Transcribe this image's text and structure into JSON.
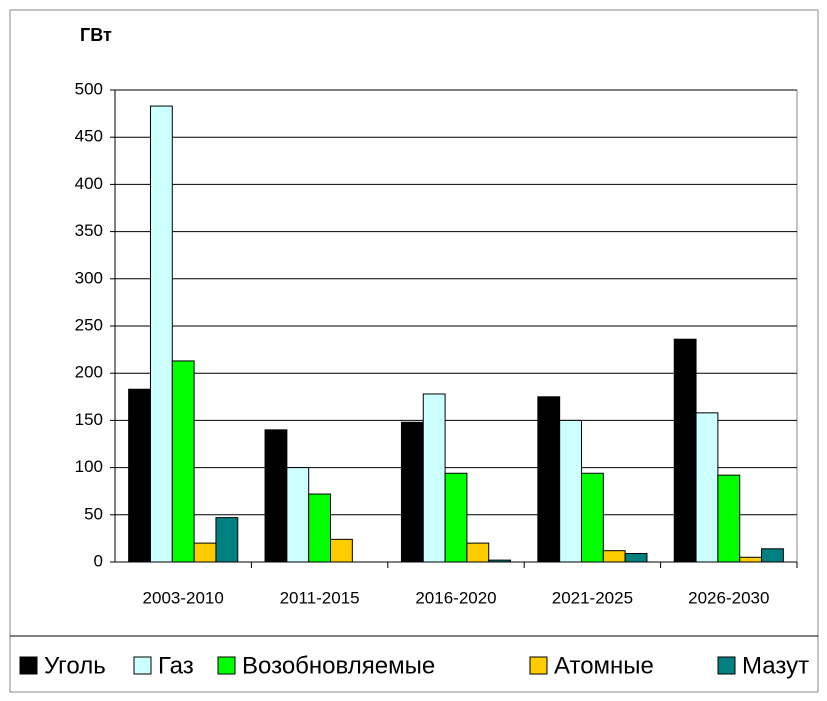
{
  "chart_data": {
    "type": "bar",
    "y_label": "ГВт",
    "categories": [
      "2003-2010",
      "2011-2015",
      "2016-2020",
      "2021-2025",
      "2026-2030"
    ],
    "series": [
      {
        "name": "Уголь",
        "color": "#000000",
        "values": [
          183,
          140,
          148,
          175,
          236
        ]
      },
      {
        "name": "Газ",
        "color": "#ccffff",
        "values": [
          483,
          100,
          178,
          150,
          158
        ]
      },
      {
        "name": "Возобновляемые",
        "color": "#00ff00",
        "values": [
          213,
          72,
          94,
          94,
          92
        ]
      },
      {
        "name": "Атомные",
        "color": "#ffcc00",
        "values": [
          20,
          24,
          20,
          12,
          5
        ]
      },
      {
        "name": "Мазут",
        "color": "#008080",
        "values": [
          47,
          0,
          2,
          9,
          14
        ]
      }
    ],
    "ylim": [
      0,
      500
    ],
    "yticks": [
      0,
      50,
      100,
      150,
      200,
      250,
      300,
      350,
      400,
      450,
      500
    ],
    "grid": true,
    "legend": "bottom"
  }
}
